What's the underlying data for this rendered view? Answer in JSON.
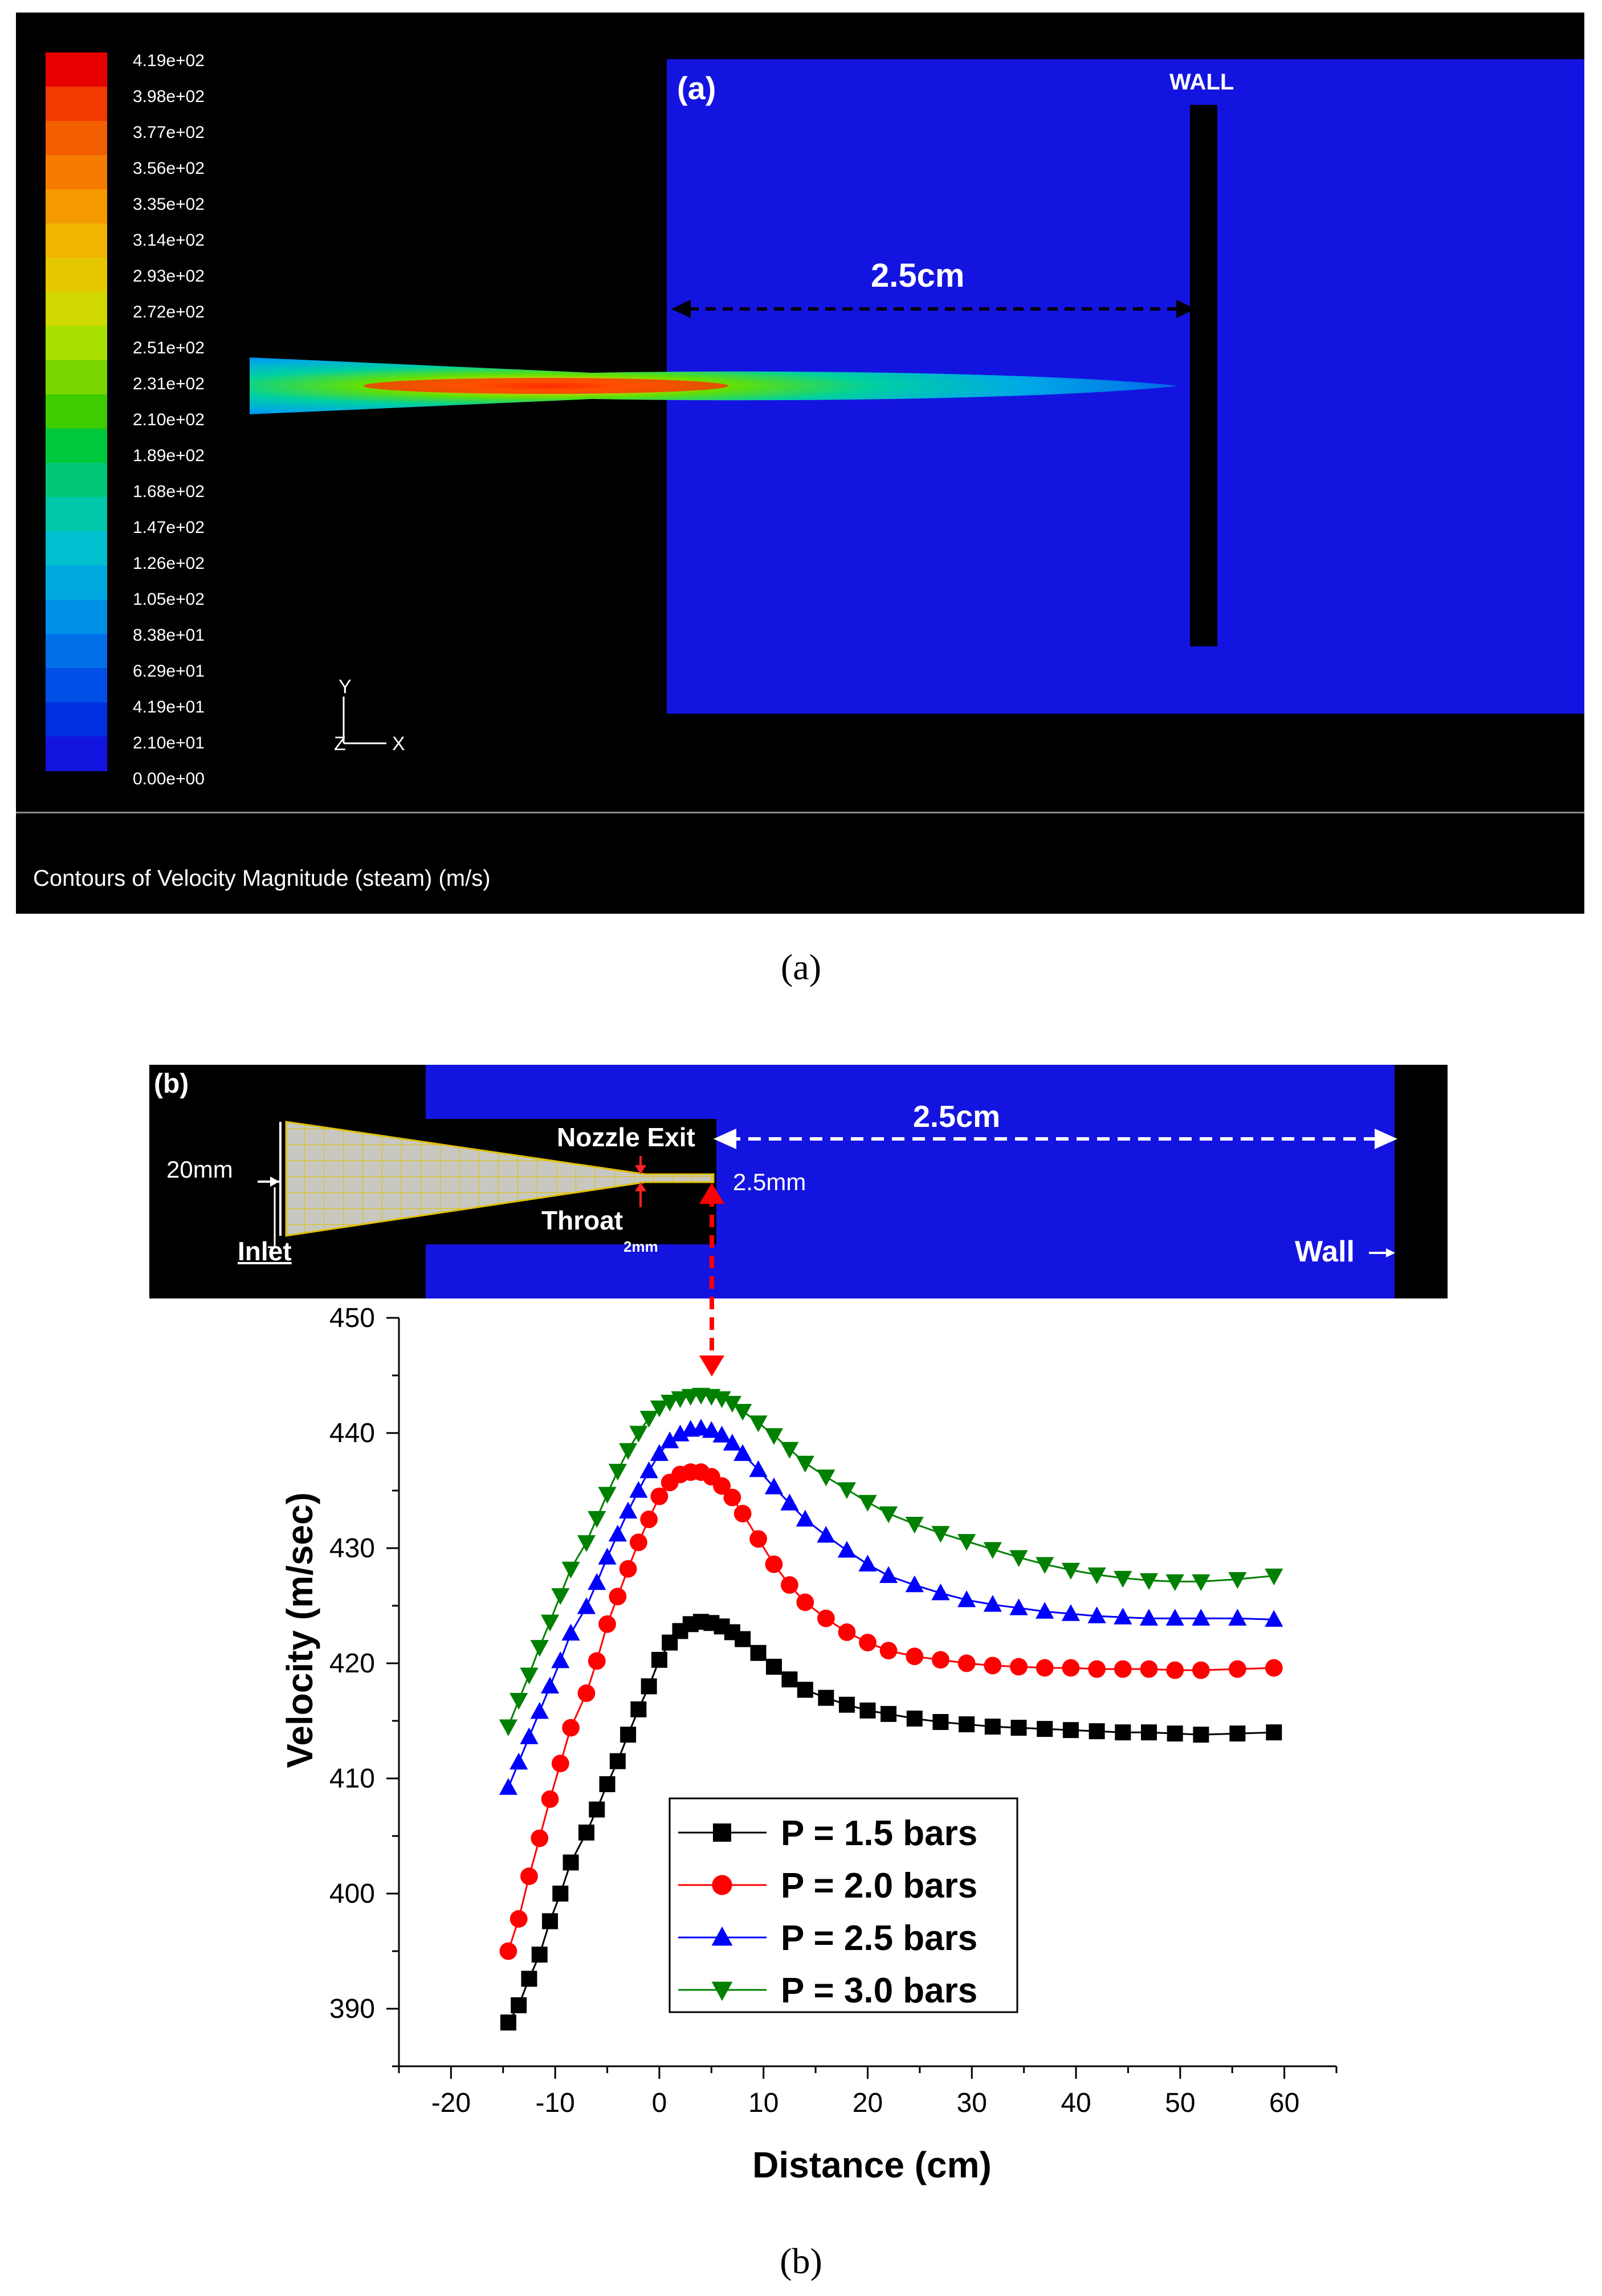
{
  "panel_a": {
    "label": "(a)",
    "wall_label": "WALL",
    "distance_label": "2.5cm",
    "status_text": "Contours of Velocity Magnitude (steam)  (m/s)",
    "axis_y": "Y",
    "axis_x": "X",
    "axis_z": "Z",
    "caption": "(a)",
    "colorbar_ticks": [
      "4.19e+02",
      "3.98e+02",
      "3.77e+02",
      "3.56e+02",
      "3.35e+02",
      "3.14e+02",
      "2.93e+02",
      "2.72e+02",
      "2.51e+02",
      "2.31e+02",
      "2.10e+02",
      "1.89e+02",
      "1.68e+02",
      "1.47e+02",
      "1.26e+02",
      "1.05e+02",
      "8.38e+01",
      "6.29e+01",
      "4.19e+01",
      "2.10e+01",
      "0.00e+00"
    ],
    "colorbar_colors": [
      "#e80000",
      "#f03a00",
      "#f35e00",
      "#f57c00",
      "#f59a00",
      "#f2b400",
      "#e6c800",
      "#cfd800",
      "#a8e000",
      "#7ad600",
      "#3ccc00",
      "#00c83c",
      "#00c878",
      "#00c8a8",
      "#00c0d0",
      "#00a8e0",
      "#0090e8",
      "#0070e8",
      "#0050e8",
      "#0030e0",
      "#1414e0"
    ]
  },
  "panel_b": {
    "label": "(b)",
    "inlet_label": "Inlet",
    "inlet_size": "20mm",
    "nozzle_exit_label": "Nozzle Exit",
    "throat_label": "Throat",
    "throat_size": "2mm",
    "exit_size": "2.5mm",
    "distance_label": "2.5cm",
    "wall_label": "Wall",
    "caption": "(b)"
  },
  "chart_data": {
    "type": "line",
    "xlabel": "Distance (cm)",
    "ylabel": "Velocity (m/sec)",
    "xlim": [
      -25,
      65
    ],
    "ylim": [
      385,
      450
    ],
    "xticks": [
      -20,
      -10,
      0,
      10,
      20,
      30,
      40,
      50,
      60
    ],
    "yticks": [
      390,
      400,
      410,
      420,
      430,
      440,
      450
    ],
    "legend_position": "lower-middle",
    "x": [
      -14.5,
      -13.5,
      -12.5,
      -11.5,
      -10.5,
      -9.5,
      -8.5,
      -7.0,
      -6.0,
      -5.0,
      -4.0,
      -3.0,
      -2.0,
      -1.0,
      0.0,
      1.0,
      2.0,
      3.0,
      4.0,
      5.0,
      6.0,
      7.0,
      8.0,
      9.5,
      11.0,
      12.5,
      14.0,
      16.0,
      18.0,
      20.0,
      22.0,
      24.5,
      27.0,
      29.5,
      32.0,
      34.5,
      37.0,
      39.5,
      42.0,
      44.5,
      47.0,
      49.5,
      52.0,
      55.5,
      59.0
    ],
    "series": [
      {
        "name": "P = 1.5 bars",
        "color": "#000000",
        "marker": "square",
        "values": [
          388.8,
          390.3,
          392.6,
          394.7,
          397.6,
          400.0,
          402.7,
          405.3,
          407.3,
          409.5,
          411.5,
          413.8,
          416.0,
          418.0,
          420.3,
          421.8,
          422.8,
          423.4,
          423.6,
          423.5,
          423.2,
          422.7,
          422.1,
          420.9,
          419.7,
          418.6,
          417.7,
          417.0,
          416.4,
          415.9,
          415.6,
          415.2,
          414.9,
          414.7,
          414.5,
          414.4,
          414.3,
          414.2,
          414.1,
          414.0,
          414.0,
          413.9,
          413.8,
          413.9,
          414.0
        ]
      },
      {
        "name": "P = 2.0 bars",
        "color": "#ff0000",
        "marker": "circle",
        "values": [
          395.0,
          397.8,
          401.5,
          404.8,
          408.2,
          411.3,
          414.4,
          417.4,
          420.2,
          423.4,
          425.8,
          428.2,
          430.5,
          432.5,
          434.5,
          435.7,
          436.4,
          436.6,
          436.6,
          436.2,
          435.4,
          434.4,
          433.0,
          430.8,
          428.6,
          426.8,
          425.3,
          423.9,
          422.7,
          421.8,
          421.1,
          420.6,
          420.3,
          420.0,
          419.8,
          419.7,
          419.6,
          419.6,
          419.5,
          419.5,
          419.5,
          419.4,
          419.4,
          419.5,
          419.6
        ]
      },
      {
        "name": "P = 2.5 bars",
        "color": "#0000ff",
        "marker": "triangle-up",
        "values": [
          409.2,
          411.4,
          413.6,
          415.8,
          418.0,
          420.2,
          422.6,
          424.9,
          427.0,
          429.2,
          431.2,
          433.2,
          435.0,
          436.7,
          438.2,
          439.3,
          439.9,
          440.3,
          440.4,
          440.2,
          439.8,
          439.1,
          438.2,
          436.8,
          435.3,
          433.9,
          432.5,
          431.1,
          429.8,
          428.6,
          427.6,
          426.8,
          426.1,
          425.5,
          425.1,
          424.8,
          424.5,
          424.3,
          424.1,
          424.0,
          423.9,
          423.9,
          423.9,
          423.9,
          423.8
        ]
      },
      {
        "name": "P = 3.0 bars",
        "color": "#008000",
        "marker": "triangle-down",
        "values": [
          414.5,
          416.8,
          419.0,
          421.4,
          423.6,
          425.9,
          428.2,
          430.5,
          432.6,
          434.7,
          436.7,
          438.5,
          440.0,
          441.3,
          442.2,
          442.7,
          443.0,
          443.2,
          443.3,
          443.2,
          443.0,
          442.6,
          441.9,
          440.9,
          439.8,
          438.6,
          437.4,
          436.2,
          435.1,
          434.0,
          433.0,
          432.1,
          431.3,
          430.6,
          429.9,
          429.2,
          428.6,
          428.1,
          427.7,
          427.4,
          427.2,
          427.1,
          427.1,
          427.3,
          427.6
        ]
      }
    ]
  }
}
